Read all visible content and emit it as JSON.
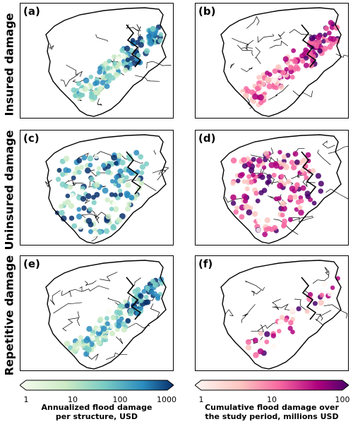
{
  "rows": [
    {
      "label": "Insured damage"
    },
    {
      "label": "Uninsured damage"
    },
    {
      "label": "Repetitive damage"
    }
  ],
  "panels": {
    "a": "(a)",
    "b": "(b)",
    "c": "(c)",
    "d": "(d)",
    "e": "(e)",
    "f": "(f)"
  },
  "colorbars": {
    "left": {
      "ticks": [
        "1",
        "10",
        "100",
        "1000"
      ],
      "title_line1": "Annualized flood damage",
      "title_line2": "per structure, USD",
      "colormap": "GnBu",
      "colors": [
        "#f7fcf0",
        "#ccebc5",
        "#7bccc4",
        "#2b8cbe",
        "#08306b"
      ]
    },
    "right": {
      "ticks": [
        "1",
        "10",
        "100"
      ],
      "title_line1": "Cumulative flood damage over",
      "title_line2": "the study period, millions USD",
      "colormap": "RdPu",
      "colors": [
        "#fff7f3",
        "#fcc5c0",
        "#f768a1",
        "#ae017e",
        "#49006a"
      ]
    }
  }
}
